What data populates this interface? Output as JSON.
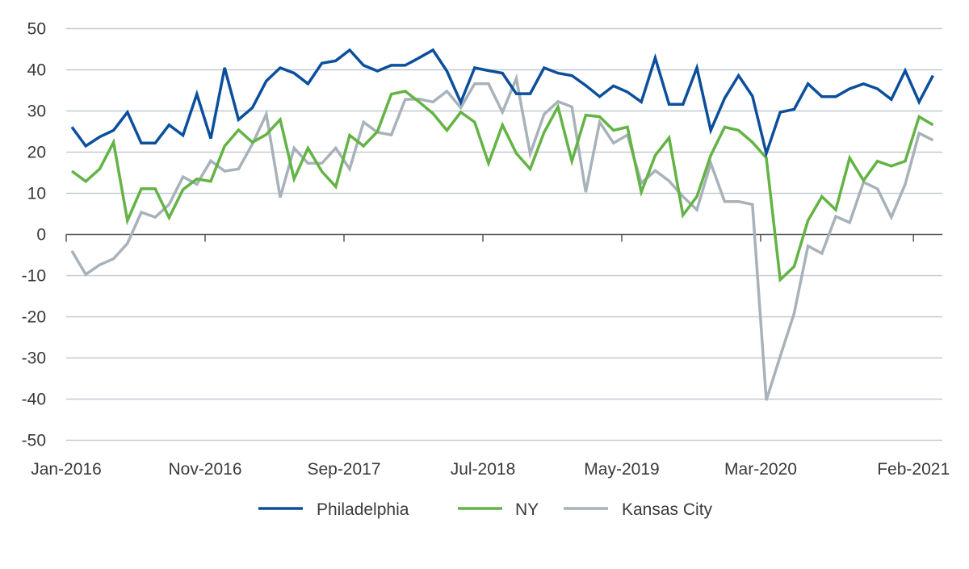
{
  "chart_data": {
    "type": "line",
    "title": "",
    "xlabel": "",
    "ylabel": "",
    "ylim": [
      -50,
      50
    ],
    "yticks": [
      50,
      40,
      30,
      20,
      10,
      0,
      -10,
      -20,
      -30,
      -40,
      -50
    ],
    "grid": "horizontal",
    "legend_position": "bottom",
    "x": [
      "Jan-2016",
      "Feb-2016",
      "Mar-2016",
      "Apr-2016",
      "May-2016",
      "Jun-2016",
      "Jul-2016",
      "Aug-2016",
      "Sep-2016",
      "Oct-2016",
      "Nov-2016",
      "Dec-2016",
      "Jan-2017",
      "Feb-2017",
      "Mar-2017",
      "Apr-2017",
      "May-2017",
      "Jun-2017",
      "Jul-2017",
      "Aug-2017",
      "Sep-2017",
      "Oct-2017",
      "Nov-2017",
      "Dec-2017",
      "Jan-2018",
      "Feb-2018",
      "Mar-2018",
      "Apr-2018",
      "May-2018",
      "Jun-2018",
      "Jul-2018",
      "Aug-2018",
      "Sep-2018",
      "Oct-2018",
      "Nov-2018",
      "Dec-2018",
      "Jan-2019",
      "Feb-2019",
      "Mar-2019",
      "Apr-2019",
      "May-2019",
      "Jun-2019",
      "Jul-2019",
      "Aug-2019",
      "Sep-2019",
      "Oct-2019",
      "Nov-2019",
      "Dec-2019",
      "Jan-2020",
      "Feb-2020",
      "Mar-2020",
      "Apr-2020",
      "May-2020",
      "Jun-2020",
      "Jul-2020",
      "Aug-2020",
      "Sep-2020",
      "Oct-2020",
      "Nov-2020",
      "Dec-2020",
      "Jan-2021",
      "Feb-2021",
      "Mar-2021"
    ],
    "xtick_labels": [
      "Jan-2016",
      "Nov-2016",
      "Sep-2017",
      "Jul-2018",
      "May-2019",
      "Mar-2020",
      "Feb-2021"
    ],
    "series": [
      {
        "name": "Philadelphia",
        "color": "#0b4f9c",
        "values": [
          26.1,
          21.5,
          23.7,
          25.3,
          29.7,
          22.2,
          22.2,
          26.6,
          24.1,
          34.1,
          23.3,
          40.5,
          27.9,
          30.8,
          37.3,
          40.5,
          39.2,
          36.6,
          41.6,
          42.2,
          44.8,
          41.1,
          39.7,
          41.1,
          41.1,
          42.9,
          44.8,
          39.7,
          32.1,
          40.5,
          39.8,
          39.2,
          34.2,
          34.2,
          40.5,
          39.2,
          38.6,
          36.2,
          33.5,
          36.1,
          34.6,
          32.2,
          42.9,
          31.6,
          31.6,
          40.5,
          25.3,
          33.1,
          38.6,
          33.6,
          19.7,
          29.7,
          30.4,
          36.6,
          33.5,
          33.5,
          35.4,
          36.6,
          35.4,
          32.8,
          39.8,
          32.2,
          38.6
        ]
      },
      {
        "name": "NY",
        "color": "#63b345",
        "values": [
          15.4,
          12.9,
          15.9,
          22.4,
          3.4,
          11.1,
          11.1,
          4.1,
          10.9,
          13.5,
          12.9,
          21.5,
          25.4,
          22.4,
          24.3,
          27.9,
          13.5,
          21.0,
          15.3,
          11.6,
          24.1,
          21.5,
          25.0,
          34.1,
          34.8,
          32.2,
          29.4,
          25.3,
          29.7,
          27.3,
          17.3,
          26.6,
          19.7,
          15.9,
          24.8,
          31.0,
          17.8,
          29.0,
          28.6,
          25.3,
          26.1,
          10.3,
          19.2,
          23.5,
          4.7,
          9.2,
          19.2,
          26.1,
          25.3,
          22.4,
          18.6,
          -11.0,
          -7.8,
          3.4,
          9.2,
          6.0,
          18.6,
          13.1,
          17.8,
          16.6,
          17.8,
          28.6,
          26.6
        ]
      },
      {
        "name": "Kansas City",
        "color": "#a8b2ba",
        "values": [
          -4.0,
          -9.7,
          -7.4,
          -5.9,
          -2.2,
          5.4,
          4.2,
          7.3,
          14.0,
          12.2,
          17.9,
          15.4,
          15.9,
          22.0,
          29.2,
          9.0,
          21.0,
          17.3,
          17.3,
          21.0,
          15.9,
          27.3,
          24.8,
          24.2,
          32.8,
          32.9,
          32.2,
          34.8,
          30.8,
          36.6,
          36.6,
          29.7,
          37.9,
          19.6,
          29.2,
          32.3,
          31.0,
          10.3,
          27.3,
          22.2,
          24.2,
          12.5,
          15.5,
          13.0,
          9.2,
          6.0,
          17.3,
          8.0,
          8.0,
          7.3,
          -40.3,
          -29.6,
          -19.2,
          -2.8,
          -4.6,
          4.4,
          2.9,
          12.7,
          11.1,
          4.2,
          12.2,
          24.6,
          22.9
        ]
      }
    ]
  }
}
